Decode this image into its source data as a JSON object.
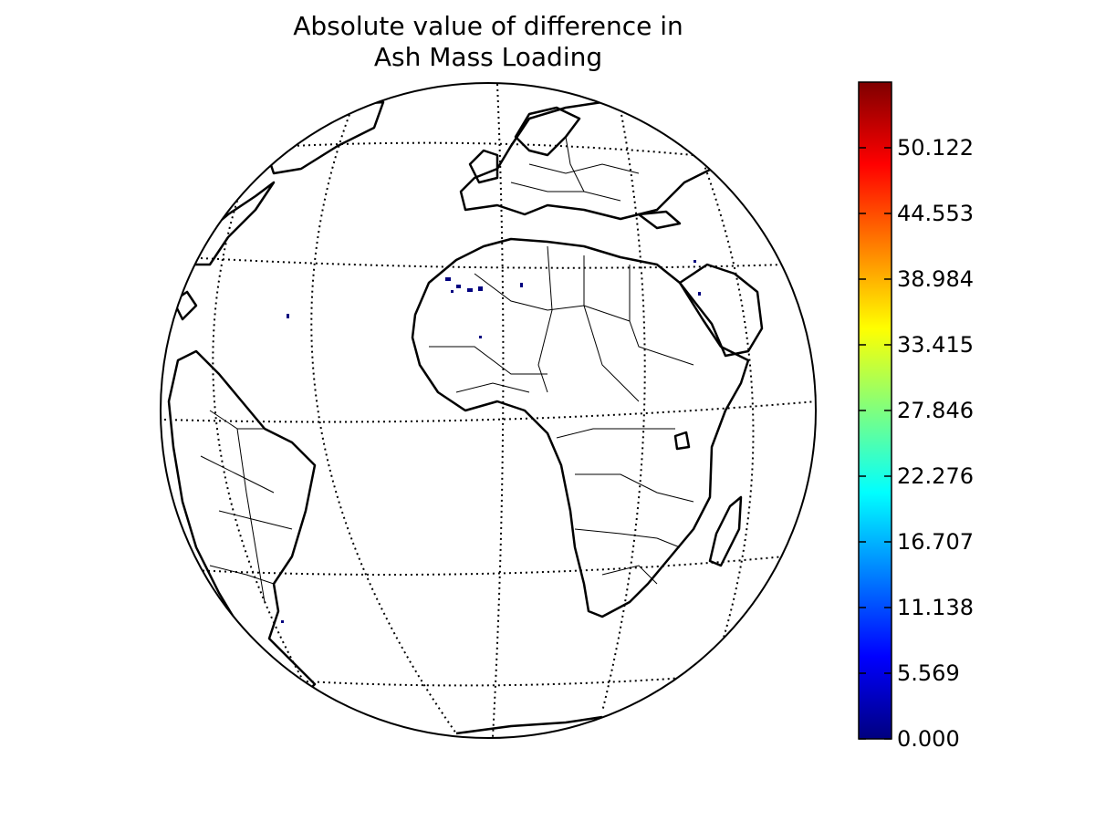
{
  "map": {
    "title_line1": "Absolute value of difference in",
    "title_line2": "Ash Mass Loading",
    "projection": "orthographic",
    "graticule": "dotted",
    "features": [
      "coastlines",
      "country-borders",
      "scattered-ash-pixels"
    ]
  },
  "colorbar": {
    "colormap": "jet",
    "min": 0,
    "max": 55.69,
    "ticks": [
      {
        "value": 0.0,
        "label": "0.000"
      },
      {
        "value": 5.569,
        "label": "5.569"
      },
      {
        "value": 11.138,
        "label": "11.138"
      },
      {
        "value": 16.707,
        "label": "16.707"
      },
      {
        "value": 22.276,
        "label": "22.276"
      },
      {
        "value": 27.846,
        "label": "27.846"
      },
      {
        "value": 33.415,
        "label": "33.415"
      },
      {
        "value": 38.984,
        "label": "38.984"
      },
      {
        "value": 44.553,
        "label": "44.553"
      },
      {
        "value": 50.122,
        "label": "50.122"
      }
    ],
    "colors": [
      "#00007f",
      "#0000ff",
      "#007fff",
      "#00ffff",
      "#7fff7f",
      "#ffff00",
      "#ff7f00",
      "#ff0000",
      "#7f0000"
    ]
  }
}
